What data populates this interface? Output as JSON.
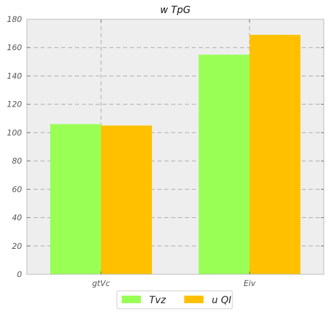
{
  "chart_data": {
    "type": "bar",
    "title": "w TpG",
    "categories": [
      "gtVc",
      "Eiv"
    ],
    "series": [
      {
        "name": "Tvz",
        "values": [
          106,
          155
        ],
        "color": "#99ff55"
      },
      {
        "name": "u QI",
        "values": [
          105,
          169
        ],
        "color": "#ffc000"
      }
    ],
    "ylim": [
      0,
      180
    ],
    "yticks": [
      0,
      20,
      40,
      60,
      80,
      100,
      120,
      140,
      160,
      180
    ],
    "grid": true,
    "legend_position": "bottom-center",
    "colors": {
      "plot_background": "#eeeeee",
      "grid": "#aaaaaa",
      "axes": "#bbbbbb"
    }
  }
}
